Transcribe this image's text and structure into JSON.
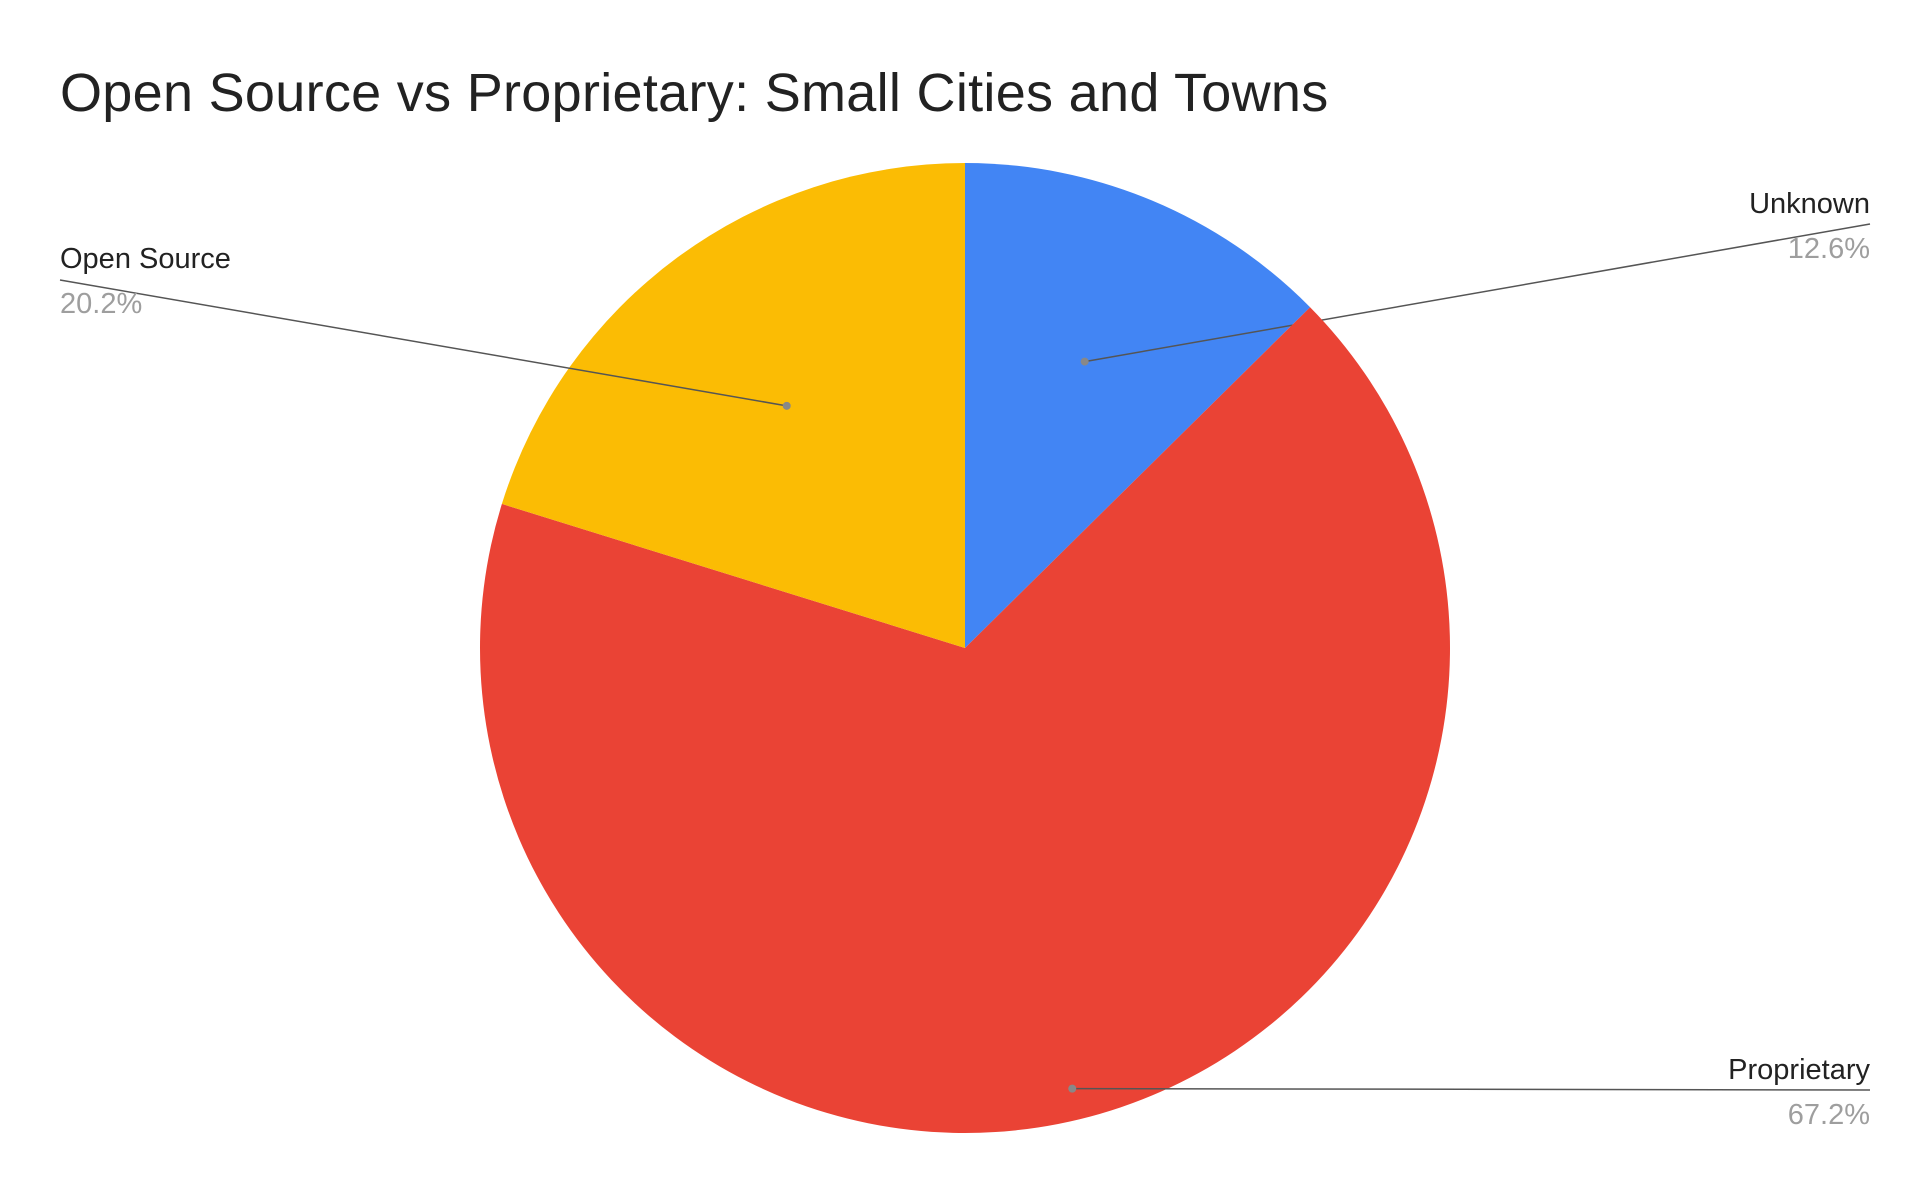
{
  "chart_data": {
    "type": "pie",
    "title": "Open Source vs Proprietary: Small Cities and Towns",
    "slices": [
      {
        "label": "Unknown",
        "value": 12.6,
        "display": "12.6%",
        "color": "#4285F4"
      },
      {
        "label": "Proprietary",
        "value": 67.2,
        "display": "67.2%",
        "color": "#EA4335"
      },
      {
        "label": "Open Source",
        "value": 20.2,
        "display": "20.2%",
        "color": "#FBBC04"
      }
    ],
    "legend": "none",
    "label_style": "callout"
  }
}
